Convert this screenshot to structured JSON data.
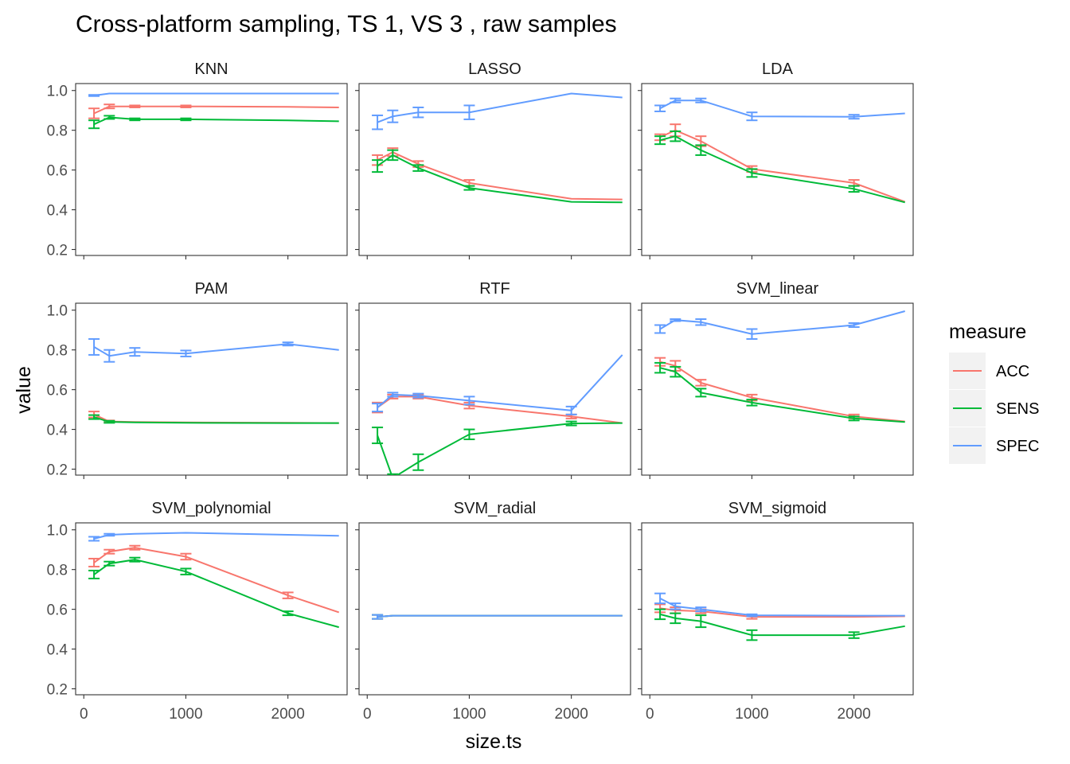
{
  "chart_data": {
    "type": "line",
    "title": "Cross-platform sampling, TS 1, VS 3 , raw samples",
    "xlabel": "size.ts",
    "ylabel": "value",
    "xlim": [
      -80,
      2580
    ],
    "ylim": [
      0.17,
      1.035
    ],
    "x_ticks": [
      0,
      1000,
      2000
    ],
    "x_tick_labels": [
      "0",
      "1000",
      "2000"
    ],
    "y_ticks": [
      0.2,
      0.4,
      0.6,
      0.8,
      1.0
    ],
    "y_tick_labels": [
      "0.2",
      "0.4",
      "0.6",
      "0.8",
      "1.0"
    ],
    "grid": false,
    "legend": {
      "title": "measure",
      "placement": "right",
      "entries": [
        {
          "label": "ACC",
          "color": "#F8766D"
        },
        {
          "label": "SENS",
          "color": "#00BA38"
        },
        {
          "label": "SPEC",
          "color": "#619CFF"
        }
      ]
    },
    "x": [
      100,
      250,
      500,
      1000,
      2000,
      2500
    ],
    "panels": [
      {
        "name": "KNN",
        "series": [
          {
            "measure": "ACC",
            "values": [
              0.885,
              0.92,
              0.92,
              0.92,
              0.918,
              0.915
            ],
            "err": [
              0.025,
              0.01,
              0.005,
              0.005,
              0,
              0
            ]
          },
          {
            "measure": "SENS",
            "values": [
              0.83,
              0.865,
              0.855,
              0.855,
              0.85,
              0.845
            ],
            "err": [
              0.02,
              0.008,
              0.005,
              0.005,
              0,
              0
            ]
          },
          {
            "measure": "SPEC",
            "values": [
              0.975,
              0.985,
              0.985,
              0.985,
              0.985,
              0.985
            ],
            "err": [
              0.003,
              0,
              0,
              0,
              0,
              0
            ]
          }
        ]
      },
      {
        "name": "LASSO",
        "series": [
          {
            "measure": "ACC",
            "values": [
              0.65,
              0.69,
              0.63,
              0.535,
              0.455,
              0.452
            ],
            "err": [
              0.025,
              0.02,
              0.015,
              0.015,
              0,
              0
            ]
          },
          {
            "measure": "SENS",
            "values": [
              0.62,
              0.675,
              0.61,
              0.51,
              0.44,
              0.437
            ],
            "err": [
              0.03,
              0.025,
              0.015,
              0.01,
              0,
              0
            ]
          },
          {
            "measure": "SPEC",
            "values": [
              0.84,
              0.87,
              0.89,
              0.89,
              0.985,
              0.965
            ],
            "err": [
              0.035,
              0.03,
              0.025,
              0.035,
              0,
              0
            ]
          }
        ]
      },
      {
        "name": "LDA",
        "series": [
          {
            "measure": "ACC",
            "values": [
              0.765,
              0.8,
              0.745,
              0.605,
              0.535,
              0.44
            ],
            "err": [
              0.015,
              0.03,
              0.025,
              0.015,
              0.015,
              0
            ]
          },
          {
            "measure": "SENS",
            "values": [
              0.75,
              0.77,
              0.7,
              0.585,
              0.505,
              0.437
            ],
            "err": [
              0.02,
              0.025,
              0.025,
              0.02,
              0.015,
              0
            ]
          },
          {
            "measure": "SPEC",
            "values": [
              0.91,
              0.95,
              0.95,
              0.87,
              0.868,
              0.885
            ],
            "err": [
              0.015,
              0.01,
              0.01,
              0.02,
              0.01,
              0
            ]
          }
        ]
      },
      {
        "name": "PAM",
        "series": [
          {
            "measure": "ACC",
            "values": [
              0.475,
              0.44,
              0.437,
              0.435,
              0.433,
              0.432
            ],
            "err": [
              0.015,
              0.005,
              0,
              0,
              0,
              0
            ]
          },
          {
            "measure": "SENS",
            "values": [
              0.462,
              0.438,
              0.435,
              0.433,
              0.432,
              0.432
            ],
            "err": [
              0.01,
              0.005,
              0,
              0,
              0,
              0
            ]
          },
          {
            "measure": "SPEC",
            "values": [
              0.815,
              0.77,
              0.79,
              0.782,
              0.83,
              0.8
            ],
            "err": [
              0.04,
              0.03,
              0.02,
              0.015,
              0.008,
              0
            ]
          }
        ]
      },
      {
        "name": "RTF",
        "series": [
          {
            "measure": "ACC",
            "values": [
              0.51,
              0.565,
              0.565,
              0.52,
              0.465,
              0.432
            ],
            "err": [
              0.025,
              0.01,
              0.01,
              0.015,
              0.01,
              0
            ]
          },
          {
            "measure": "SENS",
            "values": [
              0.37,
              0.155,
              0.235,
              0.375,
              0.43,
              0.432
            ],
            "err": [
              0.04,
              0.02,
              0.04,
              0.025,
              0.01,
              0
            ]
          },
          {
            "measure": "SPEC",
            "values": [
              0.51,
              0.575,
              0.57,
              0.545,
              0.495,
              0.775
            ],
            "err": [
              0.02,
              0.01,
              0.01,
              0.02,
              0.02,
              0
            ]
          }
        ]
      },
      {
        "name": "SVM_linear",
        "series": [
          {
            "measure": "ACC",
            "values": [
              0.74,
              0.72,
              0.635,
              0.56,
              0.465,
              0.44
            ],
            "err": [
              0.02,
              0.025,
              0.015,
              0.015,
              0.01,
              0
            ]
          },
          {
            "measure": "SENS",
            "values": [
              0.71,
              0.69,
              0.585,
              0.535,
              0.455,
              0.437
            ],
            "err": [
              0.025,
              0.025,
              0.02,
              0.015,
              0.01,
              0
            ]
          },
          {
            "measure": "SPEC",
            "values": [
              0.905,
              0.95,
              0.94,
              0.88,
              0.925,
              0.995
            ],
            "err": [
              0.02,
              0.005,
              0.015,
              0.025,
              0.01,
              0
            ]
          }
        ]
      },
      {
        "name": "SVM_polynomial",
        "series": [
          {
            "measure": "ACC",
            "values": [
              0.835,
              0.89,
              0.91,
              0.865,
              0.67,
              0.585
            ],
            "err": [
              0.02,
              0.01,
              0.01,
              0.015,
              0.015,
              0
            ]
          },
          {
            "measure": "SENS",
            "values": [
              0.775,
              0.83,
              0.85,
              0.79,
              0.58,
              0.51
            ],
            "err": [
              0.02,
              0.01,
              0.01,
              0.015,
              0.01,
              0
            ]
          },
          {
            "measure": "SPEC",
            "values": [
              0.955,
              0.975,
              0.98,
              0.985,
              0.975,
              0.97
            ],
            "err": [
              0.01,
              0.005,
              0,
              0,
              0,
              0
            ]
          }
        ]
      },
      {
        "name": "SVM_radial",
        "series": [
          {
            "measure": "ACC",
            "values": [
              0.562,
              0.568,
              0.568,
              0.568,
              0.568,
              0.568
            ],
            "err": [
              0.01,
              0,
              0,
              0,
              0,
              0
            ]
          },
          {
            "measure": "SENS",
            "values": [
              0.562,
              0.568,
              0.568,
              0.568,
              0.568,
              0.568
            ],
            "err": [
              0.01,
              0,
              0,
              0,
              0,
              0
            ]
          },
          {
            "measure": "SPEC",
            "values": [
              0.562,
              0.568,
              0.568,
              0.568,
              0.568,
              0.568
            ],
            "err": [
              0.01,
              0,
              0,
              0,
              0,
              0
            ]
          }
        ]
      },
      {
        "name": "SVM_sigmoid",
        "series": [
          {
            "measure": "ACC",
            "values": [
              0.605,
              0.595,
              0.59,
              0.562,
              0.562,
              0.565
            ],
            "err": [
              0.02,
              0.015,
              0.01,
              0.01,
              0,
              0
            ]
          },
          {
            "measure": "SENS",
            "values": [
              0.575,
              0.555,
              0.54,
              0.47,
              0.47,
              0.515
            ],
            "err": [
              0.025,
              0.025,
              0.03,
              0.025,
              0.015,
              0
            ]
          },
          {
            "measure": "SPEC",
            "values": [
              0.655,
              0.615,
              0.6,
              0.57,
              0.568,
              0.568
            ],
            "err": [
              0.025,
              0.015,
              0.01,
              0.005,
              0,
              0
            ]
          }
        ]
      }
    ]
  }
}
